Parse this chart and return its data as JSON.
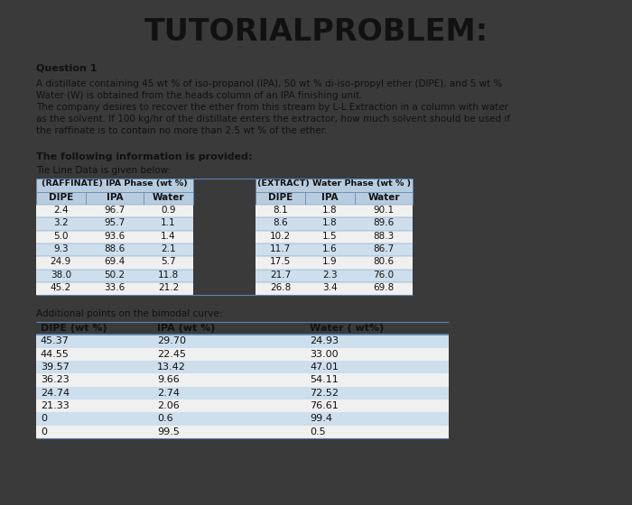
{
  "title": "TUTORIALPROBLEM:",
  "question_label": "Question 1",
  "question_lines": [
    "A distillate containing 45 wt % of iso-propanol (IPA), 50 wt % di-iso-propyl ether (DIPE), and 5 wt %",
    "Water (W) is obtained from the heads column of an IPA finishing unit.",
    "The company desires to recover the ether from this stream by L-L Extraction in a column with water",
    "as the solvent. If 100 kg/hr of the distillate enters the extractor, how much solvent should be used if",
    "the raffinate is to contain no more than 2.5 wt % of the ether."
  ],
  "info_label": "The following information is provided:",
  "tie_label": "Tie Line Data is given below:",
  "raffinate_header": "(RAFFINATE) IPA Phase (wt %)",
  "extract_header": "(EXTRACT) Water Phase (wt % )",
  "raffinate_col_headers": [
    "DIPE",
    "IPA",
    "Water"
  ],
  "extract_col_headers": [
    "DIPE",
    "IPA",
    "Water"
  ],
  "raffinate_data": [
    [
      "2.4",
      "96.7",
      "0.9"
    ],
    [
      "3.2",
      "95.7",
      "1.1"
    ],
    [
      "5.0",
      "93.6",
      "1.4"
    ],
    [
      "9.3",
      "88.6",
      "2.1"
    ],
    [
      "24.9",
      "69.4",
      "5.7"
    ],
    [
      "38.0",
      "50.2",
      "11.8"
    ],
    [
      "45.2",
      "33.6",
      "21.2"
    ]
  ],
  "extract_data": [
    [
      "8.1",
      "1.8",
      "90.1"
    ],
    [
      "8.6",
      "1.8",
      "89.6"
    ],
    [
      "10.2",
      "1.5",
      "88.3"
    ],
    [
      "11.7",
      "1.6",
      "86.7"
    ],
    [
      "17.5",
      "1.9",
      "80.6"
    ],
    [
      "21.7",
      "2.3",
      "76.0"
    ],
    [
      "26.8",
      "3.4",
      "69.8"
    ]
  ],
  "additional_label": "Additional points on the bimodal curve:",
  "bimodal_col_headers": [
    "DIPE (wt %)",
    "IPA (wt %)",
    "Water ( wt%)"
  ],
  "bimodal_data": [
    [
      "45.37",
      "29.70",
      "24.93"
    ],
    [
      "44.55",
      "22.45",
      "33.00"
    ],
    [
      "39.57",
      "13.42",
      "47.01"
    ],
    [
      "36.23",
      "9.66",
      "54.11"
    ],
    [
      "24.74",
      "2.74",
      "72.52"
    ],
    [
      "21.33",
      "2.06",
      "76.61"
    ],
    [
      "0",
      "0.6",
      "99.4"
    ],
    [
      "0",
      "99.5",
      "0.5"
    ]
  ],
  "outer_bg": "#3a3a3a",
  "inner_bg": "#f0f0f0",
  "header_color": "#b8ccdf",
  "row_odd_color": "#cddeed",
  "row_even_color": "#f0f0f0",
  "text_color": "#111111",
  "border_color": "#5a85b0",
  "title_fontsize": 24,
  "body_fontsize": 8.0,
  "small_fontsize": 7.5
}
